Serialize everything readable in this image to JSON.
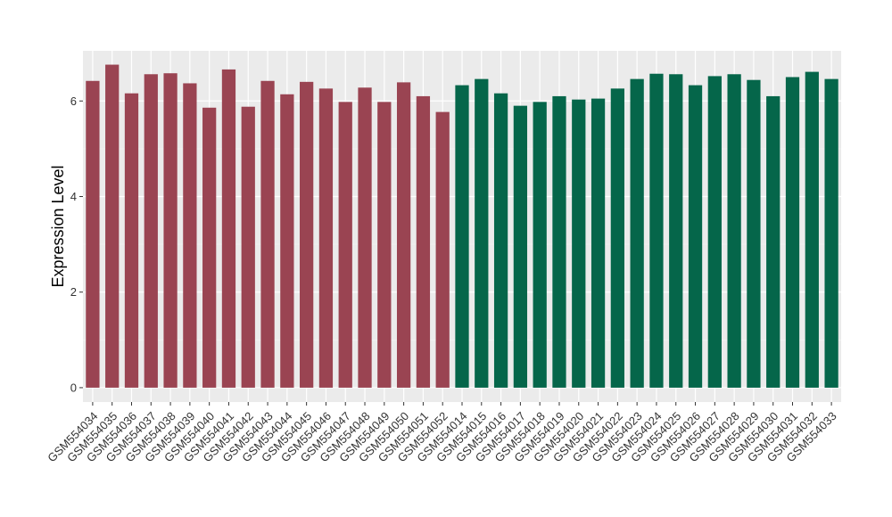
{
  "chart_data": {
    "type": "bar",
    "title": "",
    "xlabel": "",
    "ylabel": "Expression Level",
    "ylim": [
      -0.3,
      7.05
    ],
    "yticks": [
      0,
      2,
      4,
      6
    ],
    "grid": true,
    "background": "#ebebeb",
    "categories": [
      "GSM554034",
      "GSM554035",
      "GSM554036",
      "GSM554037",
      "GSM554038",
      "GSM554039",
      "GSM554040",
      "GSM554041",
      "GSM554042",
      "GSM554043",
      "GSM554044",
      "GSM554045",
      "GSM554046",
      "GSM554047",
      "GSM554048",
      "GSM554049",
      "GSM554050",
      "GSM554051",
      "GSM554052",
      "GSM554014",
      "GSM554015",
      "GSM554016",
      "GSM554017",
      "GSM554018",
      "GSM554019",
      "GSM554020",
      "GSM554021",
      "GSM554022",
      "GSM554023",
      "GSM554024",
      "GSM554025",
      "GSM554026",
      "GSM554027",
      "GSM554028",
      "GSM554029",
      "GSM554030",
      "GSM554031",
      "GSM554032",
      "GSM554033"
    ],
    "values": [
      6.42,
      6.76,
      6.16,
      6.56,
      6.58,
      6.37,
      5.86,
      6.66,
      5.88,
      6.42,
      6.14,
      6.4,
      6.26,
      5.98,
      6.28,
      5.98,
      6.39,
      6.1,
      5.77,
      6.33,
      6.46,
      6.16,
      5.9,
      5.98,
      6.1,
      6.03,
      6.05,
      6.26,
      6.46,
      6.57,
      6.56,
      6.33,
      6.52,
      6.56,
      6.44,
      6.1,
      6.5,
      6.61,
      6.46
    ],
    "groups": [
      {
        "color": "#9a4452",
        "count": 19
      },
      {
        "color": "#05664a",
        "count": 20
      }
    ]
  }
}
